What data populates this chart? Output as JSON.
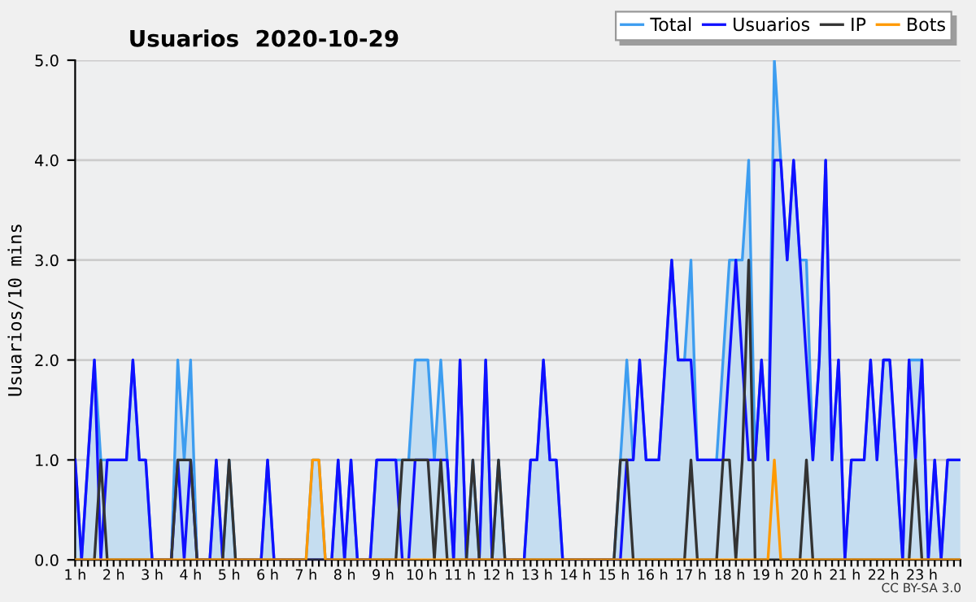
{
  "chart_data": {
    "type": "line",
    "title": "Usuarios  2020-10-29",
    "ylabel": "Usuarios/10 mins",
    "annotations": [
      "CC BY-SA 3.0"
    ],
    "categories": [
      "1 h",
      null,
      null,
      null,
      null,
      null,
      "2 h",
      null,
      null,
      null,
      null,
      null,
      "3 h",
      null,
      null,
      null,
      null,
      null,
      "4 h",
      null,
      null,
      null,
      null,
      null,
      "5 h",
      null,
      null,
      null,
      null,
      null,
      "6 h",
      null,
      null,
      null,
      null,
      null,
      "7 h",
      null,
      null,
      null,
      null,
      null,
      "8 h",
      null,
      null,
      null,
      null,
      null,
      "9 h",
      null,
      null,
      null,
      null,
      null,
      "10 h",
      null,
      null,
      null,
      null,
      null,
      "11 h",
      null,
      null,
      null,
      null,
      null,
      "12 h",
      null,
      null,
      null,
      null,
      null,
      "13 h",
      null,
      null,
      null,
      null,
      null,
      "14 h",
      null,
      null,
      null,
      null,
      null,
      "15 h",
      null,
      null,
      null,
      null,
      null,
      "16 h",
      null,
      null,
      null,
      null,
      null,
      "17 h",
      null,
      null,
      null,
      null,
      null,
      "18 h",
      null,
      null,
      null,
      null,
      null,
      "19 h",
      null,
      null,
      null,
      null,
      null,
      "20 h",
      null,
      null,
      null,
      null,
      null,
      "21 h",
      null,
      null,
      null,
      null,
      null,
      "22 h",
      null,
      null,
      null,
      null,
      null,
      "23 h",
      null,
      null,
      null,
      null,
      null,
      null
    ],
    "ylim": [
      0,
      5
    ],
    "yticks": [
      {
        "value": 0,
        "label": "0.0"
      },
      {
        "value": 1,
        "label": "1.0"
      },
      {
        "value": 2,
        "label": "2.0"
      },
      {
        "value": 3,
        "label": "3.0"
      },
      {
        "value": 4,
        "label": "4.0"
      },
      {
        "value": 5,
        "label": "5.0"
      }
    ],
    "grid": "y",
    "legend": "top right",
    "marker": "none",
    "series": [
      {
        "name": "Total",
        "type": "area",
        "color": "#3d9df0",
        "values": [
          1,
          0,
          1,
          2,
          1,
          1,
          1,
          1,
          1,
          2,
          1,
          1,
          0,
          0,
          0,
          0,
          2,
          1,
          2,
          0,
          0,
          0,
          1,
          0,
          1,
          0,
          0,
          0,
          0,
          0,
          1,
          0,
          0,
          0,
          0,
          0,
          0,
          1,
          1,
          0,
          0,
          1,
          0,
          1,
          0,
          0,
          0,
          1,
          1,
          1,
          1,
          1,
          1,
          2,
          2,
          2,
          1,
          2,
          1,
          0,
          2,
          0,
          1,
          0,
          2,
          0,
          1,
          0,
          0,
          0,
          0,
          1,
          1,
          2,
          1,
          1,
          0,
          0,
          0,
          0,
          0,
          0,
          0,
          0,
          0,
          1,
          2,
          1,
          2,
          1,
          1,
          1,
          2,
          3,
          2,
          2,
          3,
          1,
          1,
          1,
          1,
          2,
          3,
          3,
          3,
          4,
          1,
          2,
          1,
          5,
          4,
          3,
          4,
          3,
          3,
          1,
          2,
          4,
          1,
          2,
          0,
          1,
          1,
          1,
          2,
          1,
          2,
          2,
          1,
          0,
          2,
          2,
          2,
          0,
          1,
          0,
          1,
          1,
          1
        ]
      },
      {
        "name": "Usuarios",
        "color": "#1010ff",
        "values": [
          1,
          0,
          1,
          2,
          0,
          1,
          1,
          1,
          1,
          2,
          1,
          1,
          0,
          0,
          0,
          0,
          1,
          0,
          1,
          0,
          0,
          0,
          1,
          0,
          0,
          0,
          0,
          0,
          0,
          0,
          1,
          0,
          0,
          0,
          0,
          0,
          0,
          0,
          0,
          0,
          0,
          1,
          0,
          1,
          0,
          0,
          0,
          1,
          1,
          1,
          1,
          0,
          0,
          1,
          1,
          1,
          1,
          1,
          1,
          0,
          2,
          0,
          0,
          0,
          2,
          0,
          0,
          0,
          0,
          0,
          0,
          1,
          1,
          2,
          1,
          1,
          0,
          0,
          0,
          0,
          0,
          0,
          0,
          0,
          0,
          0,
          1,
          1,
          2,
          1,
          1,
          1,
          2,
          3,
          2,
          2,
          2,
          1,
          1,
          1,
          1,
          1,
          2,
          3,
          2,
          1,
          1,
          2,
          1,
          4,
          4,
          3,
          4,
          3,
          2,
          1,
          2,
          4,
          1,
          2,
          0,
          1,
          1,
          1,
          2,
          1,
          2,
          2,
          1,
          0,
          2,
          1,
          2,
          0,
          1,
          0,
          1,
          1,
          1
        ]
      },
      {
        "name": "IP",
        "color": "#333333",
        "values": [
          0,
          0,
          0,
          0,
          1,
          0,
          0,
          0,
          0,
          0,
          0,
          0,
          0,
          0,
          0,
          0,
          1,
          1,
          1,
          0,
          0,
          0,
          0,
          0,
          1,
          0,
          0,
          0,
          0,
          0,
          0,
          0,
          0,
          0,
          0,
          0,
          0,
          0,
          0,
          0,
          0,
          0,
          0,
          0,
          0,
          0,
          0,
          0,
          0,
          0,
          0,
          1,
          1,
          1,
          1,
          1,
          0,
          1,
          0,
          0,
          0,
          0,
          1,
          0,
          0,
          0,
          1,
          0,
          0,
          0,
          0,
          0,
          0,
          0,
          0,
          0,
          0,
          0,
          0,
          0,
          0,
          0,
          0,
          0,
          0,
          1,
          1,
          0,
          0,
          0,
          0,
          0,
          0,
          0,
          0,
          0,
          1,
          0,
          0,
          0,
          0,
          1,
          1,
          0,
          1,
          3,
          0,
          0,
          0,
          0,
          0,
          0,
          0,
          0,
          1,
          0,
          0,
          0,
          0,
          0,
          0,
          0,
          0,
          0,
          0,
          0,
          0,
          0,
          0,
          0,
          0,
          1,
          0,
          0,
          0,
          0,
          0,
          0,
          0
        ]
      },
      {
        "name": "Bots",
        "color": "#ff9900",
        "values": [
          0,
          0,
          0,
          0,
          0,
          0,
          0,
          0,
          0,
          0,
          0,
          0,
          0,
          0,
          0,
          0,
          0,
          0,
          0,
          0,
          0,
          0,
          0,
          0,
          0,
          0,
          0,
          0,
          0,
          0,
          0,
          0,
          0,
          0,
          0,
          0,
          0,
          1,
          1,
          0,
          0,
          0,
          0,
          0,
          0,
          0,
          0,
          0,
          0,
          0,
          0,
          0,
          0,
          0,
          0,
          0,
          0,
          0,
          0,
          0,
          0,
          0,
          0,
          0,
          0,
          0,
          0,
          0,
          0,
          0,
          0,
          0,
          0,
          0,
          0,
          0,
          0,
          0,
          0,
          0,
          0,
          0,
          0,
          0,
          0,
          0,
          0,
          0,
          0,
          0,
          0,
          0,
          0,
          0,
          0,
          0,
          0,
          0,
          0,
          0,
          0,
          0,
          0,
          0,
          0,
          0,
          0,
          0,
          0,
          1,
          0,
          0,
          0,
          0,
          0,
          0,
          0,
          0,
          0,
          0,
          0,
          0,
          0,
          0,
          0,
          0,
          0,
          0,
          0,
          0,
          0,
          0,
          0,
          0,
          0,
          0,
          0,
          0,
          0
        ]
      }
    ]
  }
}
